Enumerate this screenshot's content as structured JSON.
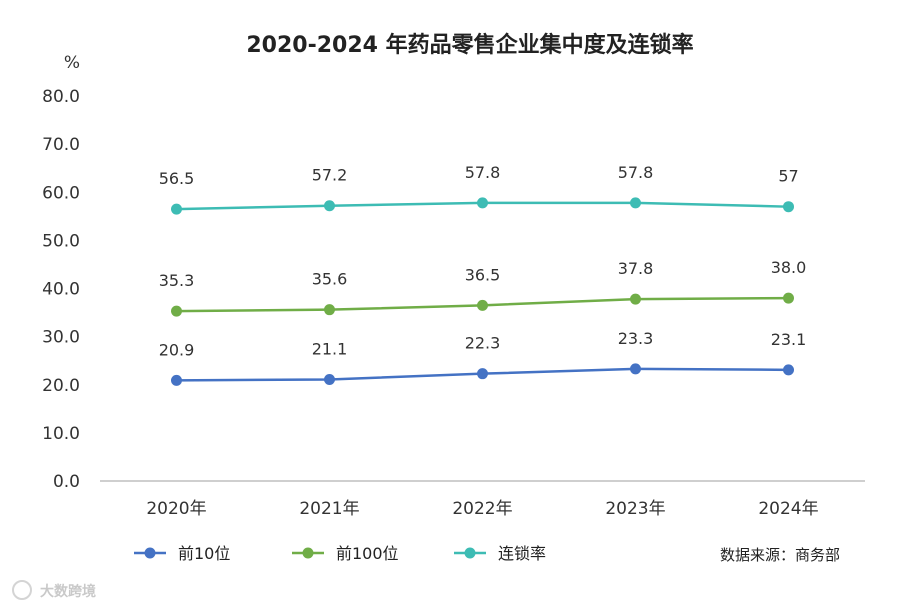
{
  "chart_data": {
    "type": "line",
    "title": "2020-2024 年药品零售企业集中度及连锁率",
    "ylabel": "%",
    "categories": [
      "2020年",
      "2021年",
      "2022年",
      "2023年",
      "2024年"
    ],
    "ylim": [
      0,
      80
    ],
    "yticks": [
      "0.0",
      "10.0",
      "20.0",
      "30.0",
      "40.0",
      "50.0",
      "60.0",
      "70.0",
      "80.0"
    ],
    "grid": false,
    "legend_position": "bottom",
    "series": [
      {
        "name": "前10位",
        "color": "#4472C4",
        "values": [
          20.9,
          21.1,
          22.3,
          23.3,
          23.1
        ],
        "labels": [
          "20.9",
          "21.1",
          "22.3",
          "23.3",
          "23.1"
        ]
      },
      {
        "name": "前100位",
        "color": "#70AD47",
        "values": [
          35.3,
          35.6,
          36.5,
          37.8,
          38.0
        ],
        "labels": [
          "35.3",
          "35.6",
          "36.5",
          "37.8",
          "38.0"
        ]
      },
      {
        "name": "连锁率",
        "color": "#3DBCB4",
        "values": [
          56.5,
          57.2,
          57.8,
          57.8,
          57
        ],
        "labels": [
          "56.5",
          "57.2",
          "57.8",
          "57.8",
          "57"
        ]
      }
    ],
    "source": "数据来源：商务部"
  },
  "watermark": "大数跨境"
}
